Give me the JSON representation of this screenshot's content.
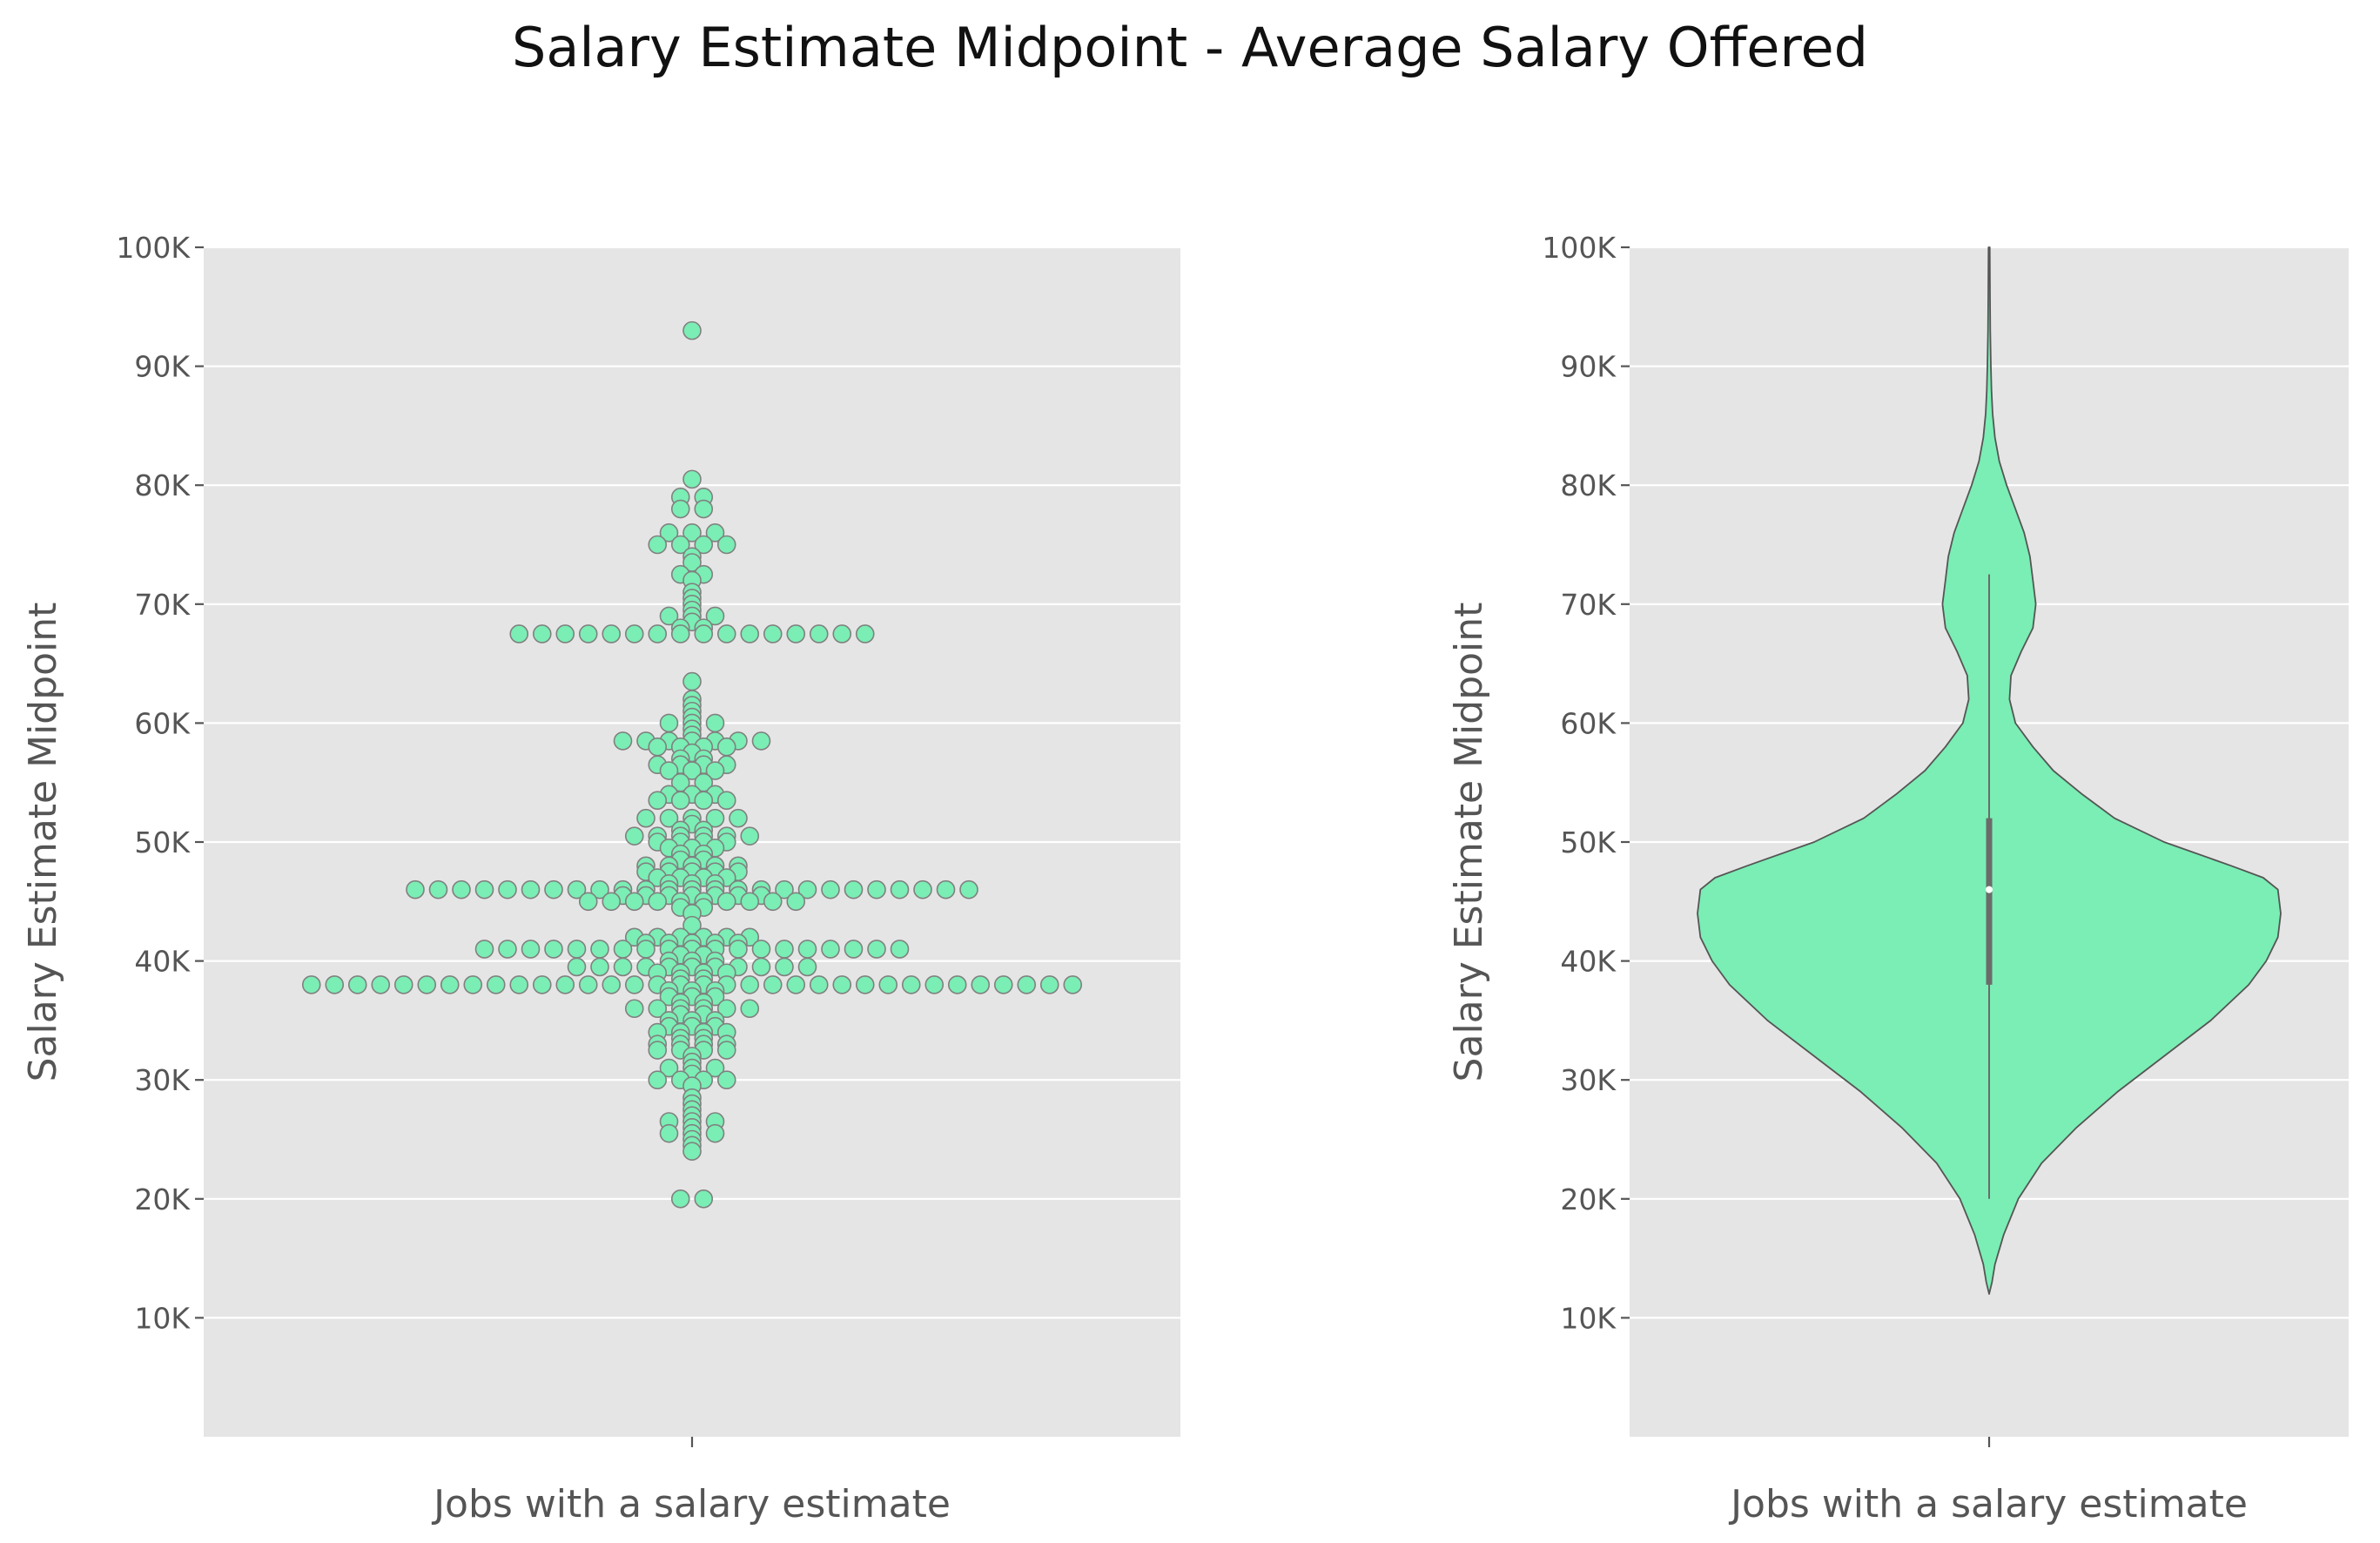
{
  "title": "Salary Estimate Midpoint - Average Salary Offered",
  "colors": {
    "panel_bg": "#e5e5e5",
    "grid": "#ffffff",
    "marker": "#7aeeb4",
    "marker_edge": "#808080",
    "violin_fill": "#7aeeb4",
    "text": "#555555"
  },
  "chart_data": [
    {
      "type": "scatter",
      "subtype": "swarm",
      "xlabel": "Jobs with a salary estimate",
      "ylabel": "Salary Estimate Midpoint",
      "ylim": [
        0,
        100000
      ],
      "yticks": [
        10000,
        20000,
        30000,
        40000,
        50000,
        60000,
        70000,
        80000,
        90000,
        100000
      ],
      "ytick_labels": [
        "10K",
        "20K",
        "30K",
        "40K",
        "50K",
        "60K",
        "70K",
        "80K",
        "90K",
        "100K"
      ],
      "xtick_labels": [
        ""
      ],
      "grid": true,
      "value_counts": [
        [
          93000,
          1
        ],
        [
          80500,
          1
        ],
        [
          79000,
          2
        ],
        [
          78000,
          2
        ],
        [
          76000,
          3
        ],
        [
          75000,
          4
        ],
        [
          74000,
          1
        ],
        [
          73500,
          1
        ],
        [
          72500,
          2
        ],
        [
          72000,
          1
        ],
        [
          71000,
          1
        ],
        [
          70500,
          1
        ],
        [
          70000,
          1
        ],
        [
          69500,
          1
        ],
        [
          69000,
          3
        ],
        [
          68500,
          1
        ],
        [
          68000,
          2
        ],
        [
          67500,
          16
        ],
        [
          63500,
          1
        ],
        [
          62000,
          1
        ],
        [
          61500,
          1
        ],
        [
          61000,
          1
        ],
        [
          60500,
          1
        ],
        [
          60000,
          3
        ],
        [
          59500,
          1
        ],
        [
          59000,
          1
        ],
        [
          58500,
          7
        ],
        [
          58000,
          4
        ],
        [
          57500,
          1
        ],
        [
          57000,
          2
        ],
        [
          56500,
          4
        ],
        [
          56000,
          3
        ],
        [
          55000,
          2
        ],
        [
          54000,
          3
        ],
        [
          53500,
          4
        ],
        [
          52000,
          5
        ],
        [
          51500,
          1
        ],
        [
          51000,
          2
        ],
        [
          50500,
          6
        ],
        [
          50000,
          4
        ],
        [
          49500,
          3
        ],
        [
          49000,
          2
        ],
        [
          48500,
          2
        ],
        [
          48000,
          5
        ],
        [
          47500,
          5
        ],
        [
          47000,
          4
        ],
        [
          46500,
          3
        ],
        [
          46000,
          25
        ],
        [
          45500,
          7
        ],
        [
          45000,
          10
        ],
        [
          44500,
          2
        ],
        [
          44000,
          1
        ],
        [
          43000,
          1
        ],
        [
          42000,
          6
        ],
        [
          41500,
          5
        ],
        [
          41000,
          19
        ],
        [
          40500,
          2
        ],
        [
          40000,
          3
        ],
        [
          39500,
          11
        ],
        [
          39000,
          4
        ],
        [
          38500,
          2
        ],
        [
          38000,
          34
        ],
        [
          37500,
          3
        ],
        [
          37000,
          3
        ],
        [
          36500,
          2
        ],
        [
          36000,
          6
        ],
        [
          35500,
          2
        ],
        [
          35000,
          3
        ],
        [
          34500,
          3
        ],
        [
          34000,
          4
        ],
        [
          33500,
          2
        ],
        [
          33000,
          4
        ],
        [
          32500,
          4
        ],
        [
          32000,
          1
        ],
        [
          31500,
          1
        ],
        [
          31000,
          3
        ],
        [
          30500,
          1
        ],
        [
          30000,
          4
        ],
        [
          29500,
          1
        ],
        [
          28500,
          1
        ],
        [
          28000,
          1
        ],
        [
          27500,
          1
        ],
        [
          27000,
          1
        ],
        [
          26500,
          3
        ],
        [
          26000,
          1
        ],
        [
          25500,
          3
        ],
        [
          25000,
          1
        ],
        [
          24500,
          1
        ],
        [
          24000,
          1
        ],
        [
          20000,
          2
        ]
      ]
    },
    {
      "type": "violin",
      "xlabel": "Jobs with a salary estimate",
      "ylabel": "Salary Estimate Midpoint",
      "ylim": [
        0,
        100000
      ],
      "yticks": [
        10000,
        20000,
        30000,
        40000,
        50000,
        60000,
        70000,
        80000,
        90000,
        100000
      ],
      "ytick_labels": [
        "10K",
        "20K",
        "30K",
        "40K",
        "50K",
        "60K",
        "70K",
        "80K",
        "90K",
        "100K"
      ],
      "xtick_labels": [
        ""
      ],
      "grid": true,
      "density_profile": [
        [
          12000,
          0.0
        ],
        [
          13000,
          0.01
        ],
        [
          14500,
          0.02
        ],
        [
          17000,
          0.05
        ],
        [
          20000,
          0.1
        ],
        [
          23000,
          0.18
        ],
        [
          26000,
          0.3
        ],
        [
          29000,
          0.44
        ],
        [
          32000,
          0.6
        ],
        [
          35000,
          0.76
        ],
        [
          38000,
          0.89
        ],
        [
          40000,
          0.95
        ],
        [
          42000,
          0.99
        ],
        [
          44000,
          1.0
        ],
        [
          46000,
          0.99
        ],
        [
          47000,
          0.94
        ],
        [
          48000,
          0.83
        ],
        [
          50000,
          0.6
        ],
        [
          52000,
          0.43
        ],
        [
          54000,
          0.32
        ],
        [
          56000,
          0.22
        ],
        [
          58000,
          0.15
        ],
        [
          60000,
          0.09
        ],
        [
          62000,
          0.07
        ],
        [
          64000,
          0.075
        ],
        [
          66000,
          0.11
        ],
        [
          68000,
          0.15
        ],
        [
          70000,
          0.16
        ],
        [
          72000,
          0.15
        ],
        [
          74000,
          0.14
        ],
        [
          76000,
          0.12
        ],
        [
          78000,
          0.09
        ],
        [
          80000,
          0.06
        ],
        [
          82000,
          0.035
        ],
        [
          84000,
          0.02
        ],
        [
          86000,
          0.012
        ],
        [
          88000,
          0.008
        ],
        [
          90000,
          0.006
        ],
        [
          93000,
          0.004
        ],
        [
          96000,
          0.003
        ],
        [
          100000,
          0.002
        ]
      ],
      "whisker": [
        20000,
        72500
      ],
      "iqr": [
        38000,
        52000
      ],
      "median": 46000
    }
  ]
}
